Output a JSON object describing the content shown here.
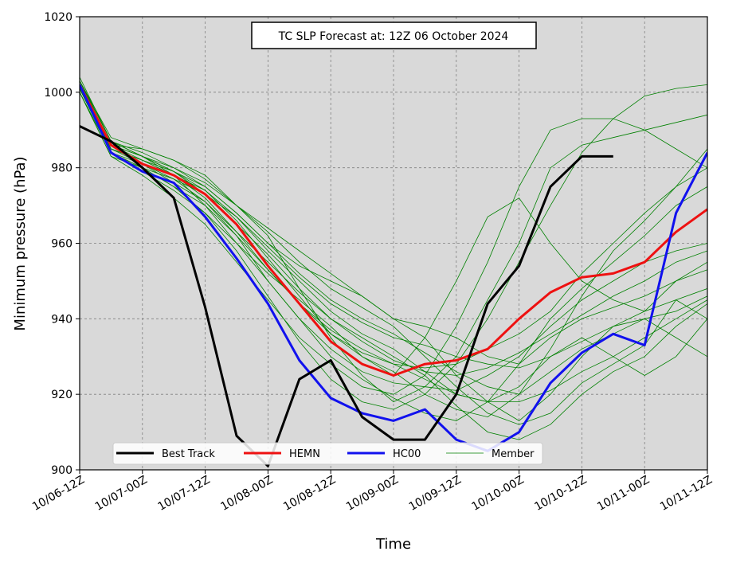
{
  "chart_data": {
    "type": "line",
    "title": "TC SLP Forecast at: 12Z 06 October 2024",
    "xlabel": "Time",
    "ylabel": "Minimum pressure (hPa)",
    "ylim": [
      900,
      1020
    ],
    "yticks": [
      "900",
      "920",
      "940",
      "960",
      "980",
      "1000",
      "1020"
    ],
    "x_tick_labels": [
      "10/06-12Z",
      "10/07-00Z",
      "10/07-12Z",
      "10/08-00Z",
      "10/08-12Z",
      "10/09-00Z",
      "10/09-12Z",
      "10/10-00Z",
      "10/10-12Z",
      "10/11-00Z",
      "10/11-12Z"
    ],
    "x_step_hours": 6,
    "grid": true,
    "legend_placement": "lower-center",
    "series": [
      {
        "name": "Best Track",
        "color": "#000000",
        "width": 3,
        "values": [
          991,
          987,
          980,
          972,
          943,
          909,
          901,
          924,
          929,
          914,
          908,
          908,
          920,
          944,
          954,
          975,
          983,
          983
        ]
      },
      {
        "name": "HEMN",
        "color": "#ee1111",
        "width": 3,
        "values": [
          1002,
          986,
          981,
          978,
          973,
          965,
          954,
          944,
          934,
          928,
          925,
          928,
          929,
          932,
          940,
          947,
          951,
          952,
          955,
          963,
          969
        ]
      },
      {
        "name": "HC00",
        "color": "#1111ee",
        "width": 3,
        "values": [
          1002,
          984,
          979,
          976,
          967,
          956,
          944,
          929,
          919,
          915,
          913,
          916,
          908,
          905,
          910,
          923,
          931,
          936,
          933,
          968,
          984
        ]
      },
      {
        "name": "Member",
        "color": "#008000",
        "width": 0.8,
        "values": []
      }
    ],
    "members": [
      [
        1003,
        986,
        985,
        982,
        978,
        970,
        962,
        948,
        935,
        925,
        918,
        922,
        930,
        945,
        960,
        980,
        986,
        988,
        990,
        992,
        994
      ],
      [
        1001,
        984,
        980,
        975,
        968,
        958,
        946,
        934,
        924,
        918,
        916,
        920,
        928,
        940,
        955,
        970,
        984,
        993,
        999,
        1001,
        1002
      ],
      [
        1000,
        983,
        978,
        972,
        965,
        955,
        945,
        935,
        928,
        922,
        920,
        925,
        938,
        955,
        975,
        990,
        993,
        993,
        990,
        985,
        980
      ],
      [
        1004,
        987,
        983,
        978,
        970,
        960,
        952,
        945,
        938,
        930,
        925,
        935,
        950,
        967,
        972,
        960,
        950,
        945,
        942,
        945,
        940
      ],
      [
        1002,
        985,
        981,
        976,
        971,
        962,
        950,
        940,
        930,
        924,
        919,
        915,
        913,
        918,
        928,
        940,
        948,
        955,
        962,
        970,
        975
      ],
      [
        1001,
        986,
        982,
        978,
        974,
        966,
        956,
        946,
        936,
        930,
        926,
        920,
        916,
        914,
        920,
        932,
        946,
        958,
        966,
        975,
        985
      ],
      [
        1003,
        988,
        985,
        982,
        977,
        970,
        964,
        958,
        952,
        946,
        940,
        935,
        925,
        918,
        913,
        920,
        930,
        938,
        940,
        935,
        930
      ],
      [
        1000,
        983,
        980,
        977,
        973,
        967,
        958,
        950,
        942,
        936,
        932,
        926,
        920,
        918,
        922,
        930,
        935,
        930,
        925,
        930,
        940
      ],
      [
        1002,
        986,
        983,
        980,
        975,
        968,
        960,
        954,
        950,
        946,
        940,
        938,
        935,
        930,
        928,
        935,
        940,
        943,
        946,
        950,
        955
      ],
      [
        1001,
        984,
        979,
        974,
        968,
        960,
        950,
        940,
        932,
        926,
        923,
        922,
        921,
        925,
        930,
        938,
        945,
        950,
        955,
        958,
        960
      ],
      [
        1003,
        987,
        984,
        980,
        976,
        970,
        963,
        955,
        948,
        943,
        938,
        930,
        922,
        915,
        912,
        915,
        923,
        928,
        933,
        945,
        948
      ],
      [
        1002,
        985,
        982,
        978,
        972,
        963,
        953,
        944,
        936,
        931,
        928,
        927,
        928,
        932,
        936,
        942,
        952,
        960,
        968,
        975,
        980
      ],
      [
        1001,
        986,
        983,
        979,
        974,
        967,
        959,
        951,
        944,
        939,
        935,
        933,
        930,
        928,
        927,
        930,
        934,
        938,
        942,
        950,
        953
      ],
      [
        1000,
        984,
        981,
        977,
        971,
        963,
        955,
        947,
        940,
        935,
        930,
        925,
        917,
        910,
        908,
        912,
        920,
        926,
        930,
        938,
        944
      ],
      [
        1003,
        987,
        983,
        979,
        975,
        968,
        960,
        952,
        945,
        940,
        936,
        931,
        926,
        922,
        920,
        926,
        932,
        936,
        940,
        942,
        946
      ],
      [
        1002,
        985,
        982,
        979,
        973,
        965,
        957,
        948,
        940,
        934,
        929,
        926,
        925,
        927,
        931,
        936,
        941,
        946,
        950,
        955,
        958
      ],
      [
        1001,
        984,
        980,
        975,
        970,
        962,
        953,
        944,
        937,
        932,
        928,
        924,
        920,
        918,
        918,
        921,
        926,
        930,
        935,
        940,
        945
      ]
    ],
    "legend": [
      "Best Track",
      "HEMN",
      "HC00",
      "Member"
    ]
  }
}
